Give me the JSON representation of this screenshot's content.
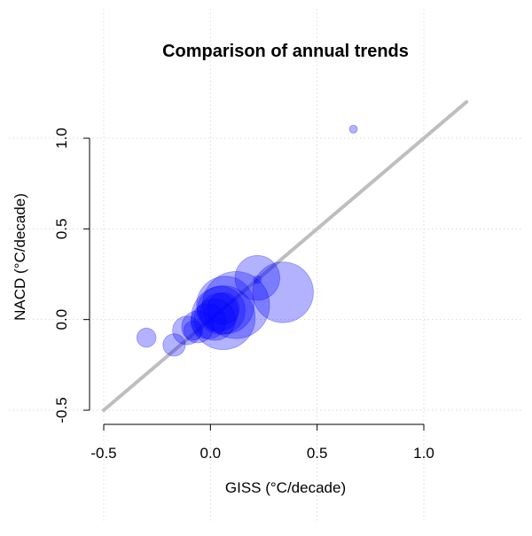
{
  "chart_data": {
    "type": "scatter",
    "title": "Comparison of annual trends",
    "xlabel": "GISS (°C/decade)",
    "ylabel": "NACD (°C/decade)",
    "xlim": [
      -0.5,
      1.0
    ],
    "ylim": [
      -0.5,
      1.0
    ],
    "x_ticks": [
      "-0.5",
      "0.0",
      "0.5",
      "1.0"
    ],
    "y_ticks": [
      "-0.5",
      "0.0",
      "0.5",
      "1.0"
    ],
    "x_tick_values": [
      -0.5,
      0.0,
      0.5,
      1.0
    ],
    "y_tick_values": [
      -0.5,
      0.0,
      0.5,
      1.0
    ],
    "grid": true,
    "reference_line": {
      "from": [
        -0.5,
        -0.5
      ],
      "to": [
        1.2,
        1.2
      ],
      "color": "#bebebe"
    },
    "point_color": "#0000ff",
    "point_opacity": 0.3,
    "points": [
      {
        "x": 0.67,
        "y": 1.05,
        "size": 0.25
      },
      {
        "x": 0.22,
        "y": 0.22,
        "size": 0.25
      },
      {
        "x": 0.22,
        "y": 0.23,
        "size": 1.4
      },
      {
        "x": 0.34,
        "y": 0.15,
        "size": 1.9
      },
      {
        "x": 0.12,
        "y": 0.08,
        "size": 2.1
      },
      {
        "x": 0.07,
        "y": 0.08,
        "size": 1.8
      },
      {
        "x": 0.05,
        "y": 0.05,
        "size": 1.5
      },
      {
        "x": 0.04,
        "y": 0.04,
        "size": 1.2
      },
      {
        "x": 0.06,
        "y": 0.06,
        "size": 1.0
      },
      {
        "x": 0.06,
        "y": 0.01,
        "size": 2.0
      },
      {
        "x": 0.02,
        "y": 0.0,
        "size": 1.3
      },
      {
        "x": -0.01,
        "y": -0.01,
        "size": 1.1
      },
      {
        "x": -0.06,
        "y": -0.04,
        "size": 1.0
      },
      {
        "x": -0.11,
        "y": -0.06,
        "size": 0.9
      },
      {
        "x": -0.08,
        "y": -0.06,
        "size": 0.6
      },
      {
        "x": -0.17,
        "y": -0.14,
        "size": 0.7
      },
      {
        "x": -0.3,
        "y": -0.1,
        "size": 0.6
      }
    ]
  }
}
